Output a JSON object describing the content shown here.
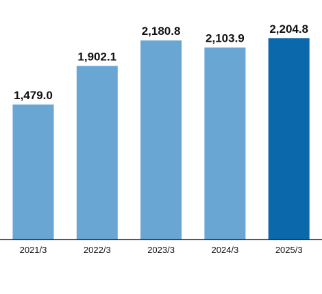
{
  "chart_data": {
    "type": "bar",
    "categories": [
      "2021/3",
      "2022/3",
      "2023/3",
      "2024/3",
      "2025/3"
    ],
    "values": [
      1479.0,
      1902.1,
      2180.8,
      2103.9,
      2204.8
    ],
    "value_labels": [
      "1,479.0",
      "1,902.1",
      "2,180.8",
      "2,103.9",
      "2,204.8"
    ],
    "ylim": [
      0,
      2400
    ],
    "grid": false,
    "bar_colors": [
      "#6aa6d4",
      "#6aa6d4",
      "#6aa6d4",
      "#6aa6d4",
      "#0b68ab"
    ],
    "axis_color": "#333333"
  }
}
